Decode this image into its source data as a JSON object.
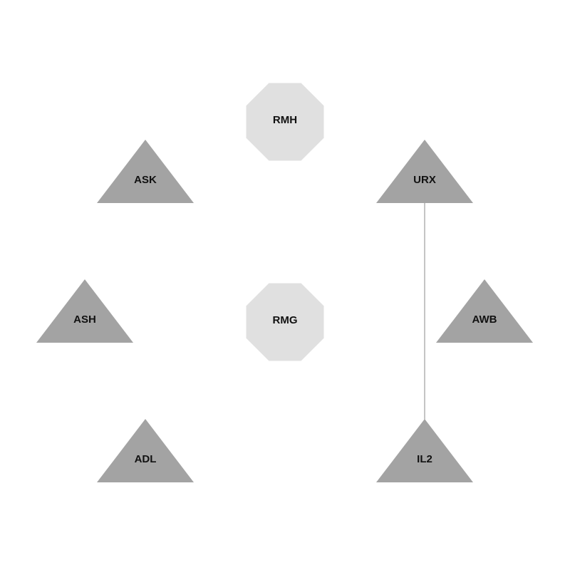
{
  "diagram": {
    "nodes": [
      {
        "id": "RMH",
        "label": "RMH",
        "shape": "octagon",
        "fill": "#e0e0e0"
      },
      {
        "id": "ASK",
        "label": "ASK",
        "shape": "triangle",
        "fill": "#a3a3a3"
      },
      {
        "id": "URX",
        "label": "URX",
        "shape": "triangle",
        "fill": "#a3a3a3"
      },
      {
        "id": "ASH",
        "label": "ASH",
        "shape": "triangle",
        "fill": "#a3a3a3"
      },
      {
        "id": "RMG",
        "label": "RMG",
        "shape": "octagon",
        "fill": "#e0e0e0"
      },
      {
        "id": "AWB",
        "label": "AWB",
        "shape": "triangle",
        "fill": "#a3a3a3"
      },
      {
        "id": "ADL",
        "label": "ADL",
        "shape": "triangle",
        "fill": "#a3a3a3"
      },
      {
        "id": "IL2",
        "label": "IL2",
        "shape": "triangle",
        "fill": "#a3a3a3"
      }
    ],
    "edges": [
      {
        "from": "URX",
        "to": "IL2",
        "color": "#888888"
      }
    ]
  }
}
